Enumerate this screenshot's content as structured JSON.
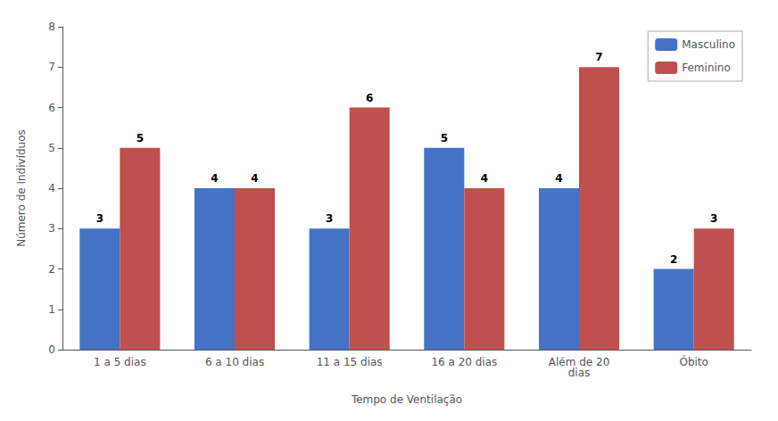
{
  "chart_data": {
    "type": "bar",
    "xlabel": "Tempo de Ventilação",
    "ylabel": "Número de Indivíduos",
    "categories": [
      "1 a 5 dias",
      "6 a 10 dias",
      "11 a 15 dias",
      "16 a 20 dias",
      "Além de 20\ndias",
      "Óbito"
    ],
    "series": [
      {
        "name": "Masculino",
        "color": "#4472C4",
        "values": [
          3,
          4,
          3,
          5,
          4,
          2
        ]
      },
      {
        "name": "Feminino",
        "color": "#C0504D",
        "values": [
          5,
          4,
          6,
          4,
          7,
          3
        ]
      }
    ],
    "ylim": [
      0,
      8
    ],
    "yticks": [
      0,
      1,
      2,
      3,
      4,
      5,
      6,
      7,
      8
    ],
    "grid": false,
    "legend": "upper right",
    "data_labels": true
  }
}
